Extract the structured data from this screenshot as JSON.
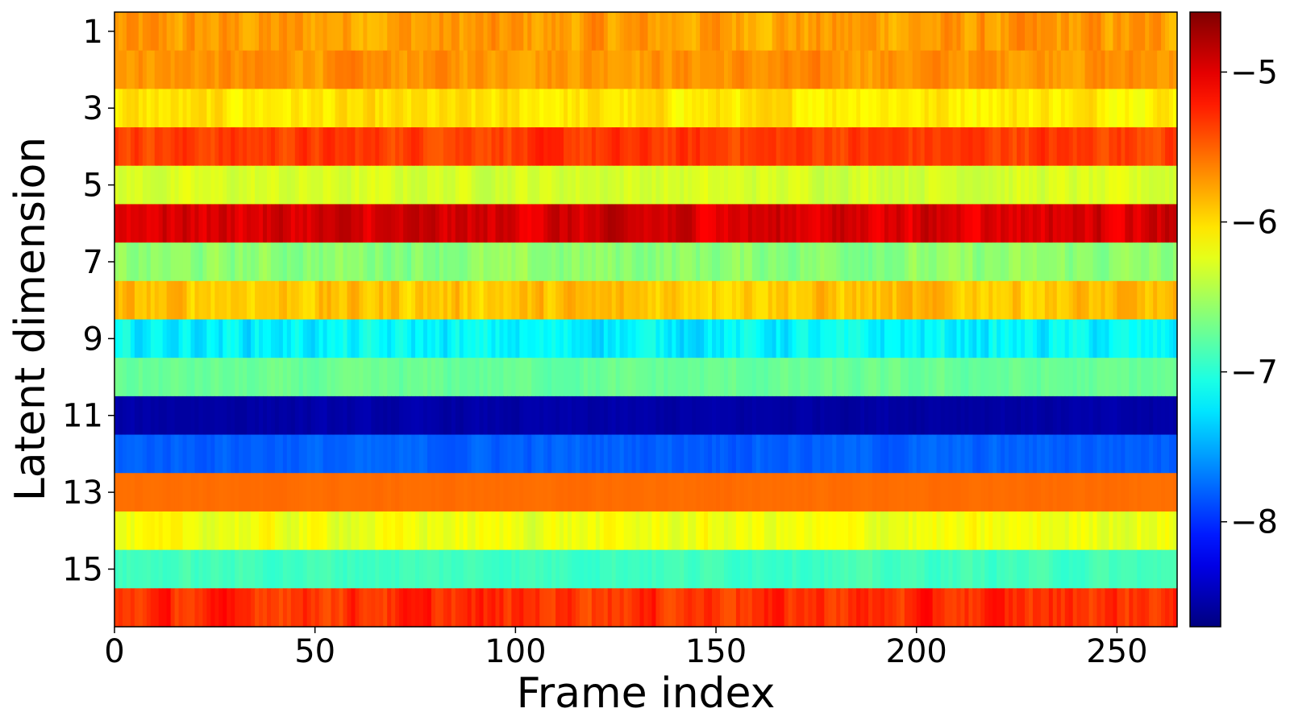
{
  "chart_data": {
    "type": "heatmap",
    "title": "",
    "xlabel": "Frame index",
    "ylabel": "Latent dimension",
    "xlim": [
      0,
      265
    ],
    "x_ticks": [
      0,
      50,
      100,
      150,
      200,
      250
    ],
    "y_ticks": [
      1,
      3,
      5,
      7,
      9,
      11,
      13,
      15
    ],
    "n_rows": 16,
    "n_frames": 265,
    "colormap": "jet",
    "color_range": [
      -8.7,
      -4.6
    ],
    "colorbar_ticks": [
      -5,
      -6,
      -7,
      -8
    ],
    "colorbar_tick_labels": [
      "−5",
      "−6",
      "−7",
      "−8"
    ],
    "rows": [
      {
        "dim": 1,
        "mean": -5.75,
        "variation": 0.25
      },
      {
        "dim": 2,
        "mean": -5.7,
        "variation": 0.18
      },
      {
        "dim": 3,
        "mean": -6.05,
        "variation": 0.2
      },
      {
        "dim": 4,
        "mean": -5.35,
        "variation": 0.2
      },
      {
        "dim": 5,
        "mean": -6.3,
        "variation": 0.15
      },
      {
        "dim": 6,
        "mean": -4.95,
        "variation": 0.25
      },
      {
        "dim": 7,
        "mean": -6.6,
        "variation": 0.2
      },
      {
        "dim": 8,
        "mean": -5.9,
        "variation": 0.25
      },
      {
        "dim": 9,
        "mean": -7.2,
        "variation": 0.3
      },
      {
        "dim": 10,
        "mean": -6.75,
        "variation": 0.12
      },
      {
        "dim": 11,
        "mean": -8.55,
        "variation": 0.08
      },
      {
        "dim": 12,
        "mean": -7.8,
        "variation": 0.12
      },
      {
        "dim": 13,
        "mean": -5.55,
        "variation": 0.03
      },
      {
        "dim": 14,
        "mean": -6.2,
        "variation": 0.2
      },
      {
        "dim": 15,
        "mean": -6.9,
        "variation": 0.12
      },
      {
        "dim": 16,
        "mean": -5.3,
        "variation": 0.25
      }
    ]
  }
}
